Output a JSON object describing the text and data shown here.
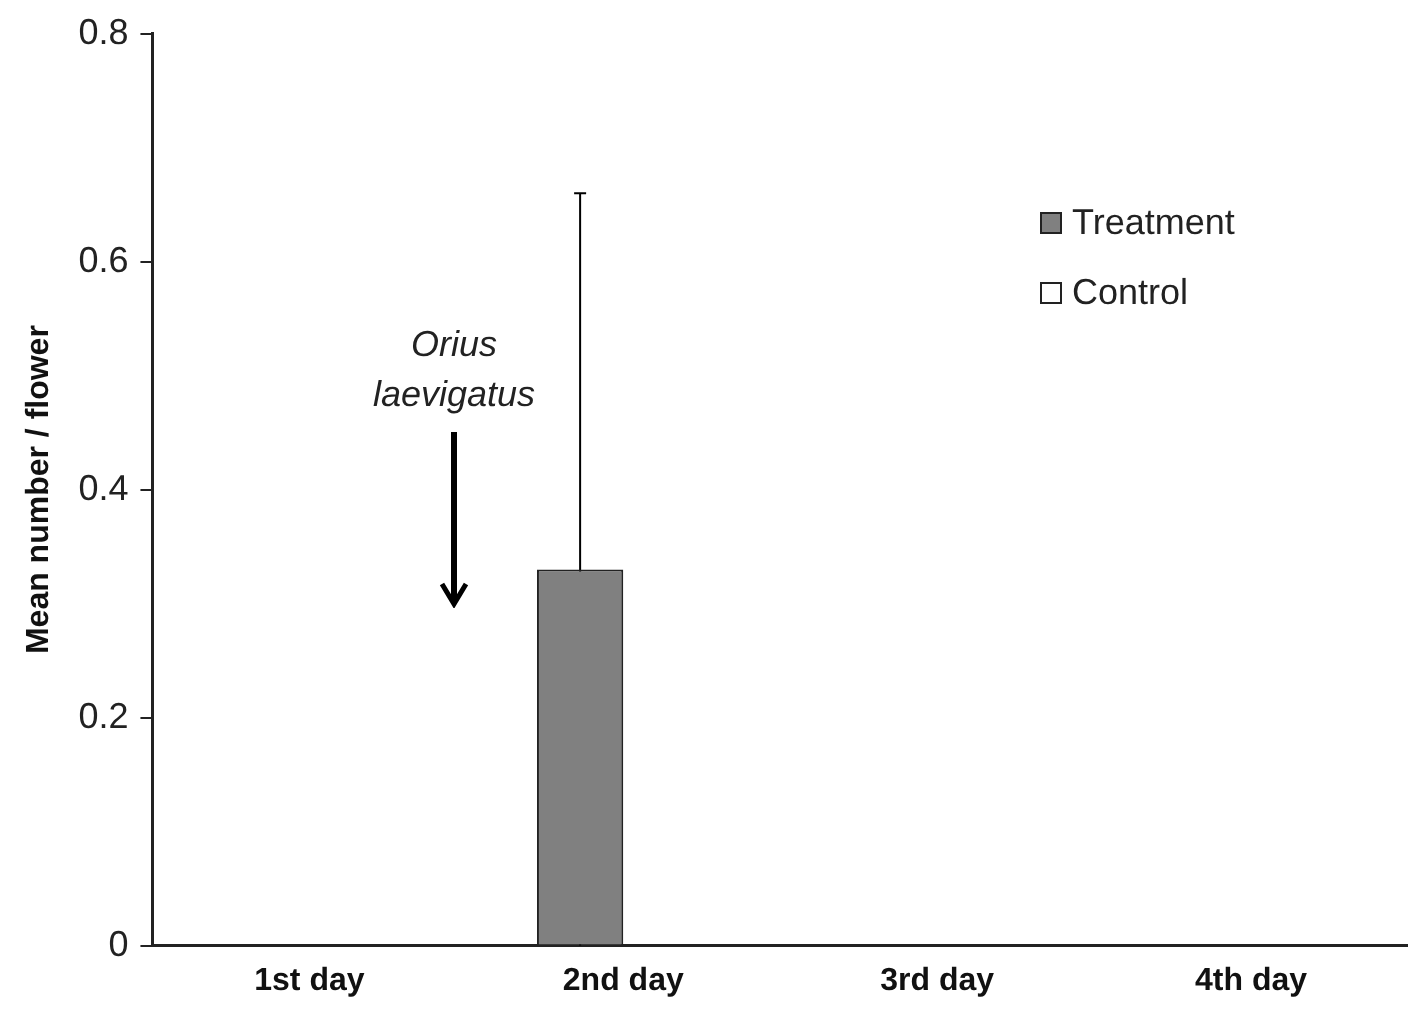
{
  "chart_data": {
    "type": "bar",
    "ylabel": "Mean number / flower",
    "categories": [
      "1st day",
      "2nd day",
      "3rd day",
      "4th day"
    ],
    "series": [
      {
        "name": "Treatment",
        "color": "#808080",
        "values": [
          0,
          0.33,
          0,
          0
        ],
        "errors": [
          null,
          0.33,
          null,
          null
        ]
      },
      {
        "name": "Control",
        "color": "#ffffff",
        "values": [
          0,
          0,
          0,
          0
        ]
      }
    ],
    "ylim": [
      0,
      0.8
    ],
    "yticks": [
      0,
      0.2,
      0.4,
      0.6,
      0.8
    ],
    "grid": false,
    "legend": "top right",
    "annotations": [
      "Orius laevigatus"
    ]
  }
}
